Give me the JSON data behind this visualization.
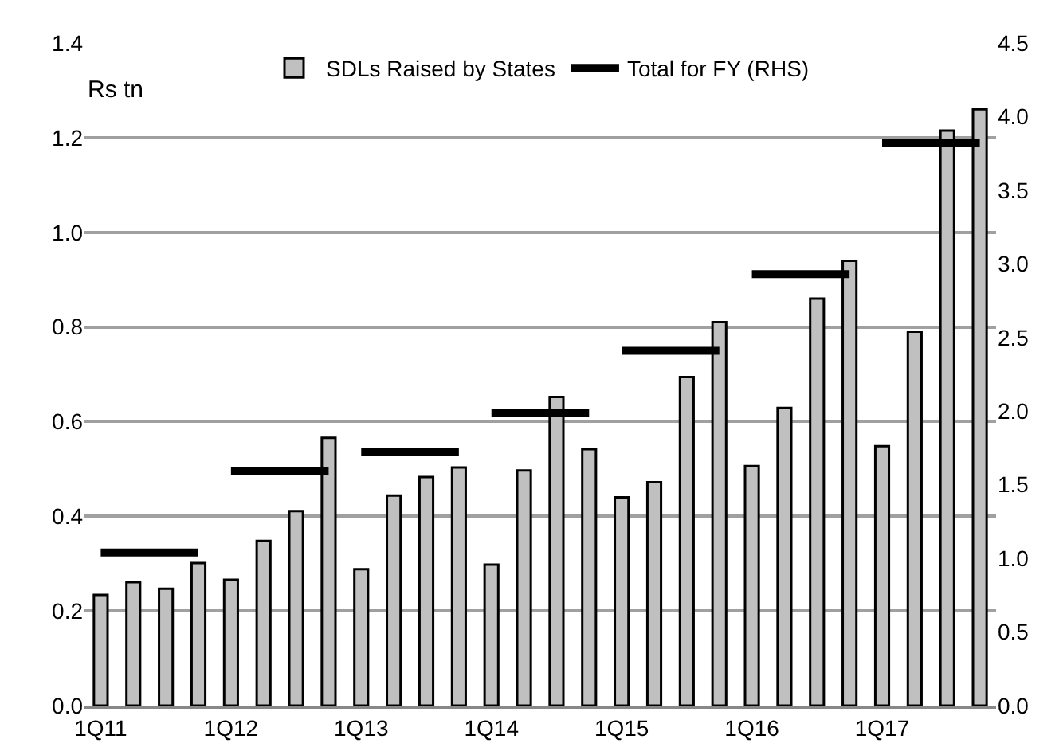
{
  "chart_data": {
    "type": "bar",
    "ylabel": "Rs tn",
    "categories": [
      "1Q11",
      null,
      null,
      null,
      "1Q12",
      null,
      null,
      null,
      "1Q13",
      null,
      null,
      null,
      "1Q14",
      null,
      null,
      null,
      "1Q15",
      null,
      null,
      null,
      "1Q16",
      null,
      null,
      null,
      "1Q17",
      null,
      null,
      null
    ],
    "series": [
      {
        "name": "SDLs Raised by States",
        "color": "#c0c0c0",
        "values": [
          0.234,
          0.261,
          0.247,
          0.301,
          0.266,
          0.348,
          0.411,
          0.566,
          0.288,
          0.444,
          0.483,
          0.503,
          0.298,
          0.497,
          0.652,
          0.542,
          0.44,
          0.472,
          0.694,
          0.81,
          0.506,
          0.629,
          0.86,
          0.94,
          0.548,
          0.79,
          1.215,
          1.26
        ]
      },
      {
        "name": "Total for FY (RHS)",
        "type": "line",
        "axis": "y2",
        "color": "#000000",
        "values": [
          1.04,
          1.04,
          1.04,
          1.04,
          1.59,
          1.59,
          1.59,
          1.59,
          1.72,
          1.72,
          1.72,
          1.72,
          1.99,
          1.99,
          1.99,
          1.99,
          2.41,
          2.41,
          2.41,
          2.41,
          2.93,
          2.93,
          2.93,
          2.93,
          3.82,
          3.82,
          3.82,
          3.82
        ]
      }
    ],
    "ylim": [
      0,
      1.4
    ],
    "yticks": [
      {
        "value": 0,
        "label": "0.0"
      },
      {
        "value": 0.2,
        "label": "0.2"
      },
      {
        "value": 0.4,
        "label": "0.4"
      },
      {
        "value": 0.6,
        "label": "0.6"
      },
      {
        "value": 0.8,
        "label": "0.8"
      },
      {
        "value": 1,
        "label": "1.0"
      },
      {
        "value": 1.2,
        "label": "1.2"
      },
      {
        "value": 1.4,
        "label": "1.4"
      }
    ],
    "y2lim": [
      0,
      4.5
    ],
    "y2ticks": [
      {
        "value": 0,
        "label": "0.0"
      },
      {
        "value": 0.5,
        "label": "0.5"
      },
      {
        "value": 1,
        "label": "1.0"
      },
      {
        "value": 1.5,
        "label": "1.5"
      },
      {
        "value": 2,
        "label": "2.0"
      },
      {
        "value": 2.5,
        "label": "2.5"
      },
      {
        "value": 3,
        "label": "3.0"
      },
      {
        "value": 3.5,
        "label": "3.5"
      },
      {
        "value": 4,
        "label": "4.0"
      },
      {
        "value": 4.5,
        "label": "4.5"
      }
    ],
    "grid": "y",
    "legend": "top",
    "marker": "none",
    "line_style": "solid"
  }
}
